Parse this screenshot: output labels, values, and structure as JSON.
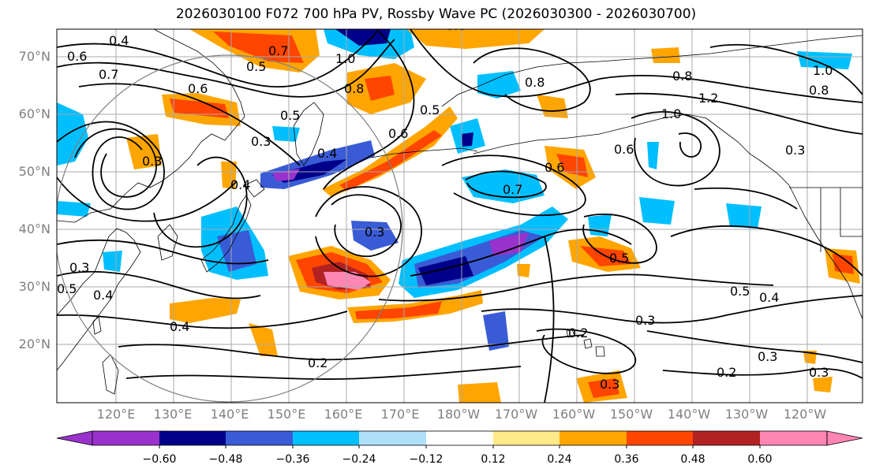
{
  "title": "2026030100 F072 700 hPa PV, Rossby Wave PC (2026030300 - 2026030700)",
  "lat_labels": [
    "70°N",
    "60°N",
    "50°N",
    "40°N",
    "30°N",
    "20°N"
  ],
  "lon_labels": [
    "120°E",
    "130°E",
    "140°E",
    "150°E",
    "160°E",
    "170°E",
    "180°W",
    "170°W",
    "160°W",
    "150°W",
    "140°W",
    "130°W",
    "120°W"
  ],
  "colorbar": {
    "ticks": [
      "−0.60",
      "−0.48",
      "−0.36",
      "−0.24",
      "−0.12",
      "0.12",
      "0.24",
      "0.36",
      "0.48",
      "0.60"
    ],
    "colors": [
      "#9932cc",
      "#00008b",
      "#3a5bd6",
      "#00bfff",
      "#b0e0f8",
      "#ffffff",
      "#ffe989",
      "#ffa500",
      "#ff4500",
      "#b22222",
      "#ff85b3"
    ]
  },
  "contour_labels": [
    "0.4",
    "0.6",
    "0.7",
    "0.5",
    "0.6",
    "0.5",
    "0.3",
    "0.3",
    "0.8",
    "1.0",
    "0.7",
    "0.6",
    "0.5",
    "0.6",
    "0.3",
    "0.8",
    "0.8",
    "1.2",
    "1.0",
    "0.6",
    "0.6",
    "0.7",
    "0.5",
    "0.5",
    "0.4",
    "0.3",
    "0.2",
    "0.3",
    "0.2",
    "0.3",
    "0.3",
    "0.5",
    "0.4",
    "0.3",
    "0.2",
    "0.3",
    "0.4",
    "0.4",
    "0.4",
    "0.8",
    "1.0"
  ],
  "colors": {
    "coastline": "#000000",
    "grid": "#a9a9a9",
    "contour": "#000000"
  }
}
